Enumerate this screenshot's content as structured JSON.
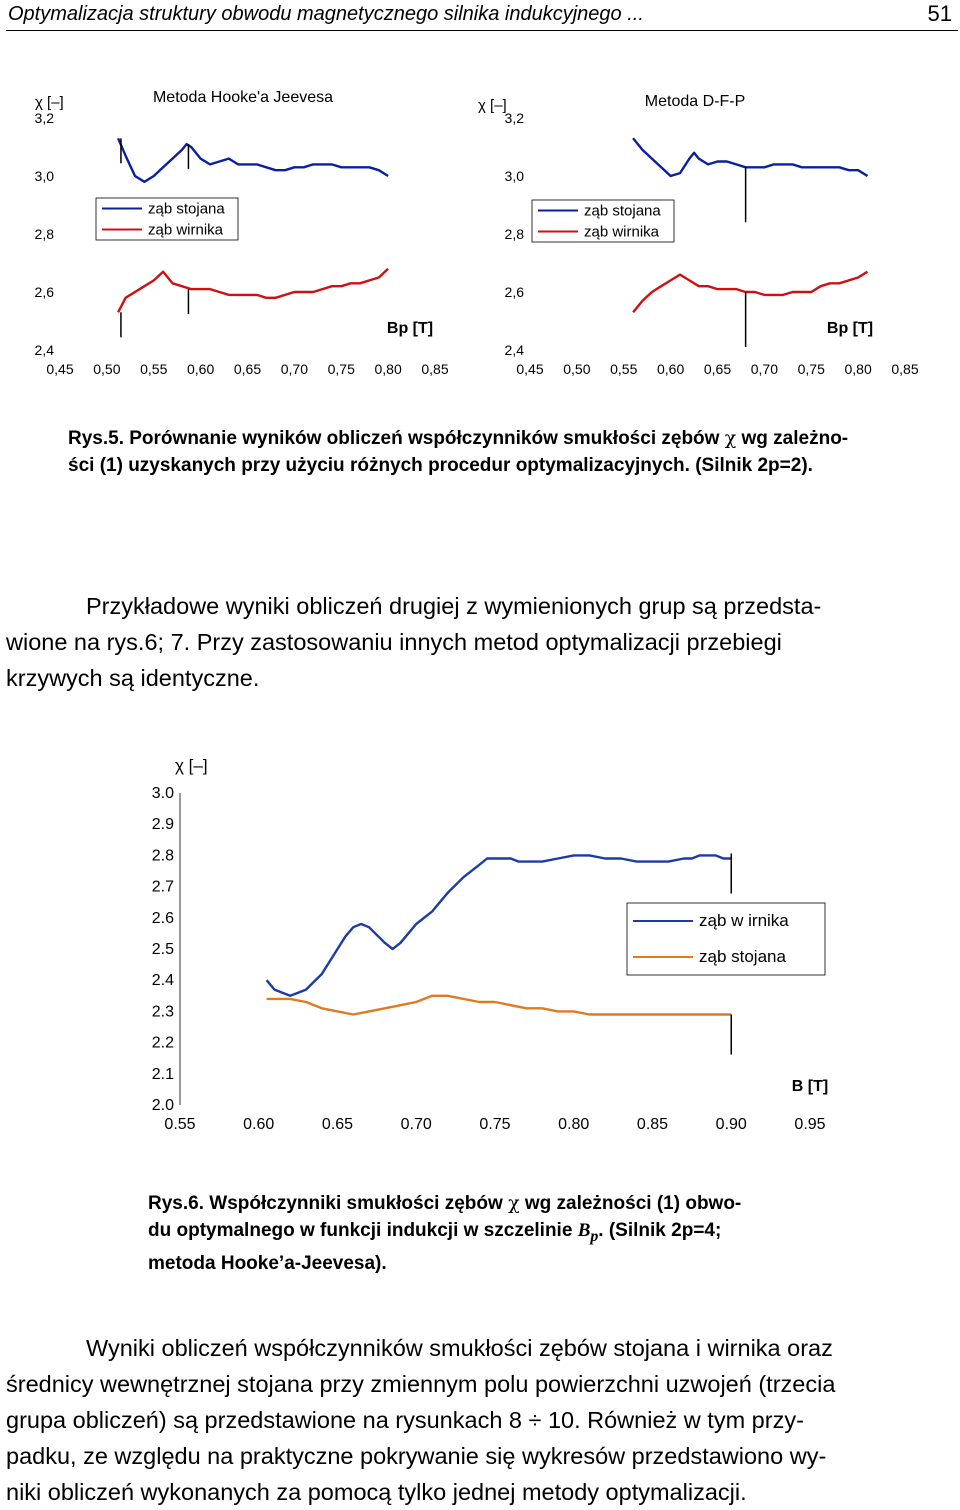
{
  "header": {
    "title": "Optymalizacja struktury obwodu magnetycznego silnika indukcyjnego ...",
    "page_number": "51"
  },
  "chart_data": [
    {
      "type": "line",
      "title": "Metoda Hooke'a Jeevesa",
      "ylabel": "χ [–]",
      "xlabel": "Bp [T]",
      "ylim": [
        2.4,
        3.2
      ],
      "xlim": [
        0.45,
        0.85
      ],
      "yticks": [
        "2,4",
        "2,6",
        "2,8",
        "3,0",
        "3,2"
      ],
      "xticks": [
        "0,45",
        "0,50",
        "0,55",
        "0,60",
        "0,65",
        "0,70",
        "0,75",
        "0,80",
        "0,85"
      ],
      "legend": [
        "ząb stojana",
        "ząb wirnika"
      ],
      "legend_position": "left",
      "marker_x": [
        0.515,
        0.587
      ],
      "series": [
        {
          "name": "ząb stojana",
          "color": "#0a1fa0",
          "x": [
            0.512,
            0.52,
            0.53,
            0.54,
            0.55,
            0.56,
            0.57,
            0.58,
            0.585,
            0.59,
            0.6,
            0.61,
            0.62,
            0.63,
            0.64,
            0.65,
            0.66,
            0.67,
            0.68,
            0.69,
            0.7,
            0.71,
            0.72,
            0.73,
            0.74,
            0.75,
            0.76,
            0.77,
            0.78,
            0.79,
            0.8
          ],
          "values": [
            3.13,
            3.07,
            3.0,
            2.98,
            3.0,
            3.03,
            3.06,
            3.09,
            3.11,
            3.1,
            3.06,
            3.04,
            3.05,
            3.06,
            3.04,
            3.04,
            3.04,
            3.03,
            3.02,
            3.02,
            3.03,
            3.03,
            3.04,
            3.04,
            3.04,
            3.03,
            3.03,
            3.03,
            3.03,
            3.02,
            3.0
          ]
        },
        {
          "name": "ząb wirnika",
          "color": "#d01010",
          "x": [
            0.512,
            0.52,
            0.53,
            0.54,
            0.55,
            0.56,
            0.57,
            0.58,
            0.59,
            0.6,
            0.61,
            0.62,
            0.63,
            0.64,
            0.65,
            0.66,
            0.67,
            0.68,
            0.69,
            0.7,
            0.71,
            0.72,
            0.73,
            0.74,
            0.75,
            0.76,
            0.77,
            0.78,
            0.79,
            0.8
          ],
          "values": [
            2.53,
            2.58,
            2.6,
            2.62,
            2.64,
            2.67,
            2.63,
            2.62,
            2.61,
            2.61,
            2.61,
            2.6,
            2.59,
            2.59,
            2.59,
            2.59,
            2.58,
            2.58,
            2.59,
            2.6,
            2.6,
            2.6,
            2.61,
            2.62,
            2.62,
            2.63,
            2.63,
            2.64,
            2.65,
            2.68
          ]
        }
      ]
    },
    {
      "type": "line",
      "title": "Metoda D-F-P",
      "ylabel": "χ [–]",
      "xlabel": "Bp [T]",
      "ylim": [
        2.4,
        3.2
      ],
      "xlim": [
        0.45,
        0.85
      ],
      "yticks": [
        "2,4",
        "2,6",
        "2,8",
        "3,0",
        "3,2"
      ],
      "xticks": [
        "0,45",
        "0,50",
        "0,55",
        "0,60",
        "0,65",
        "0,70",
        "0,75",
        "0,80",
        "0,85"
      ],
      "legend": [
        "ząb stojana",
        "ząb wirnika"
      ],
      "legend_position": "left",
      "marker_x": [
        0.68
      ],
      "series": [
        {
          "name": "ząb stojana",
          "color": "#0a1fa0",
          "x": [
            0.56,
            0.57,
            0.58,
            0.59,
            0.6,
            0.61,
            0.62,
            0.625,
            0.63,
            0.64,
            0.65,
            0.66,
            0.67,
            0.68,
            0.69,
            0.7,
            0.71,
            0.72,
            0.73,
            0.74,
            0.75,
            0.76,
            0.77,
            0.78,
            0.79,
            0.8,
            0.81
          ],
          "values": [
            3.13,
            3.09,
            3.06,
            3.03,
            3.0,
            3.01,
            3.06,
            3.08,
            3.06,
            3.04,
            3.05,
            3.05,
            3.04,
            3.03,
            3.03,
            3.03,
            3.04,
            3.04,
            3.04,
            3.03,
            3.03,
            3.03,
            3.03,
            3.03,
            3.02,
            3.02,
            3.0
          ]
        },
        {
          "name": "ząb wirnika",
          "color": "#d01010",
          "x": [
            0.56,
            0.57,
            0.58,
            0.59,
            0.6,
            0.61,
            0.62,
            0.63,
            0.64,
            0.65,
            0.66,
            0.67,
            0.68,
            0.69,
            0.7,
            0.71,
            0.72,
            0.73,
            0.74,
            0.75,
            0.76,
            0.77,
            0.78,
            0.79,
            0.8,
            0.81
          ],
          "values": [
            2.53,
            2.57,
            2.6,
            2.62,
            2.64,
            2.66,
            2.64,
            2.62,
            2.62,
            2.61,
            2.61,
            2.61,
            2.6,
            2.6,
            2.59,
            2.59,
            2.59,
            2.6,
            2.6,
            2.6,
            2.62,
            2.63,
            2.63,
            2.64,
            2.65,
            2.67
          ]
        }
      ]
    },
    {
      "type": "line",
      "title": "",
      "ylabel": "χ [–]",
      "xlabel": "B [T]",
      "ylim": [
        2.0,
        3.0
      ],
      "xlim": [
        0.55,
        0.95
      ],
      "yticks": [
        "2.0",
        "2.1",
        "2.2",
        "2.3",
        "2.4",
        "2.5",
        "2.6",
        "2.7",
        "2.8",
        "2.9",
        "3.0"
      ],
      "xticks": [
        "0.55",
        "0.60",
        "0.65",
        "0.70",
        "0.75",
        "0.80",
        "0.85",
        "0.90",
        "0.95"
      ],
      "legend": [
        "ząb w irnika",
        "ząb stojana"
      ],
      "legend_position": "right",
      "marker_x": [
        0.9
      ],
      "series": [
        {
          "name": "ząb w irnika",
          "color": "#1c3aa8",
          "x": [
            0.605,
            0.61,
            0.615,
            0.62,
            0.625,
            0.63,
            0.64,
            0.65,
            0.655,
            0.66,
            0.665,
            0.67,
            0.68,
            0.685,
            0.69,
            0.7,
            0.71,
            0.72,
            0.73,
            0.74,
            0.745,
            0.75,
            0.76,
            0.765,
            0.77,
            0.78,
            0.79,
            0.8,
            0.81,
            0.82,
            0.83,
            0.84,
            0.85,
            0.86,
            0.87,
            0.875,
            0.88,
            0.89,
            0.895,
            0.9
          ],
          "values": [
            2.4,
            2.37,
            2.36,
            2.35,
            2.36,
            2.37,
            2.42,
            2.5,
            2.54,
            2.57,
            2.58,
            2.57,
            2.52,
            2.5,
            2.52,
            2.58,
            2.62,
            2.68,
            2.73,
            2.77,
            2.79,
            2.79,
            2.79,
            2.78,
            2.78,
            2.78,
            2.79,
            2.8,
            2.8,
            2.79,
            2.79,
            2.78,
            2.78,
            2.78,
            2.79,
            2.79,
            2.8,
            2.8,
            2.79,
            2.79
          ]
        },
        {
          "name": "ząb stojana",
          "color": "#e07a20",
          "x": [
            0.605,
            0.62,
            0.63,
            0.64,
            0.65,
            0.66,
            0.67,
            0.68,
            0.69,
            0.7,
            0.71,
            0.72,
            0.73,
            0.74,
            0.75,
            0.76,
            0.77,
            0.78,
            0.79,
            0.8,
            0.81,
            0.82,
            0.83,
            0.84,
            0.85,
            0.86,
            0.87,
            0.88,
            0.89,
            0.9
          ],
          "values": [
            2.34,
            2.34,
            2.33,
            2.31,
            2.3,
            2.29,
            2.3,
            2.31,
            2.32,
            2.33,
            2.35,
            2.35,
            2.34,
            2.33,
            2.33,
            2.32,
            2.31,
            2.31,
            2.3,
            2.3,
            2.29,
            2.29,
            2.29,
            2.29,
            2.29,
            2.29,
            2.29,
            2.29,
            2.29,
            2.29
          ]
        }
      ]
    }
  ],
  "caption5": {
    "label": "Rys.5.",
    "text_a": " Porównanie wyników obliczeń współczynników smukłości zębów ",
    "symbol": "χ",
    "text_b": " wg zależno-",
    "line2": "ści (1) uzyskanych przy użyciu różnych procedur optymalizacyjnych. (Silnik 2p=2)."
  },
  "paragraph1": {
    "line1": "Przykładowe wyniki obliczeń drugiej z wymienionych grup są przedsta-",
    "line2": "wione na rys.6; 7. Przy zastosowaniu innych metod optymalizacji przebiegi",
    "line3": "krzywych są identyczne."
  },
  "caption6": {
    "label": "Rys.6.",
    "text_a": " Współczynniki smukłości zębów ",
    "symbol": "χ",
    "text_b": " wg zależności (1) obwo-",
    "line2_a": "du optymalnego w funkcji indukcji w szczelinie ",
    "bp": "B",
    "bp_sub": "p",
    "line2_b": ". (Silnik 2p=4;",
    "line3": "metoda Hooke’a-Jeevesa)."
  },
  "paragraph2": {
    "line1": "Wyniki obliczeń współczynników smukłości zębów stojana i wirnika oraz",
    "line2": "średnicy wewnętrznej stojana przy zmiennym polu powierzchni uzwojeń (trzecia",
    "line3": "grupa obliczeń) są przedstawione na rysunkach  8 ÷ 10. Również w tym przy-",
    "line4": "padku, ze względu na praktyczne pokrywanie się wykresów przedstawiono wy-",
    "line5": "niki obliczeń wykonanych za pomocą tylko jednej metody optymalizacji."
  }
}
